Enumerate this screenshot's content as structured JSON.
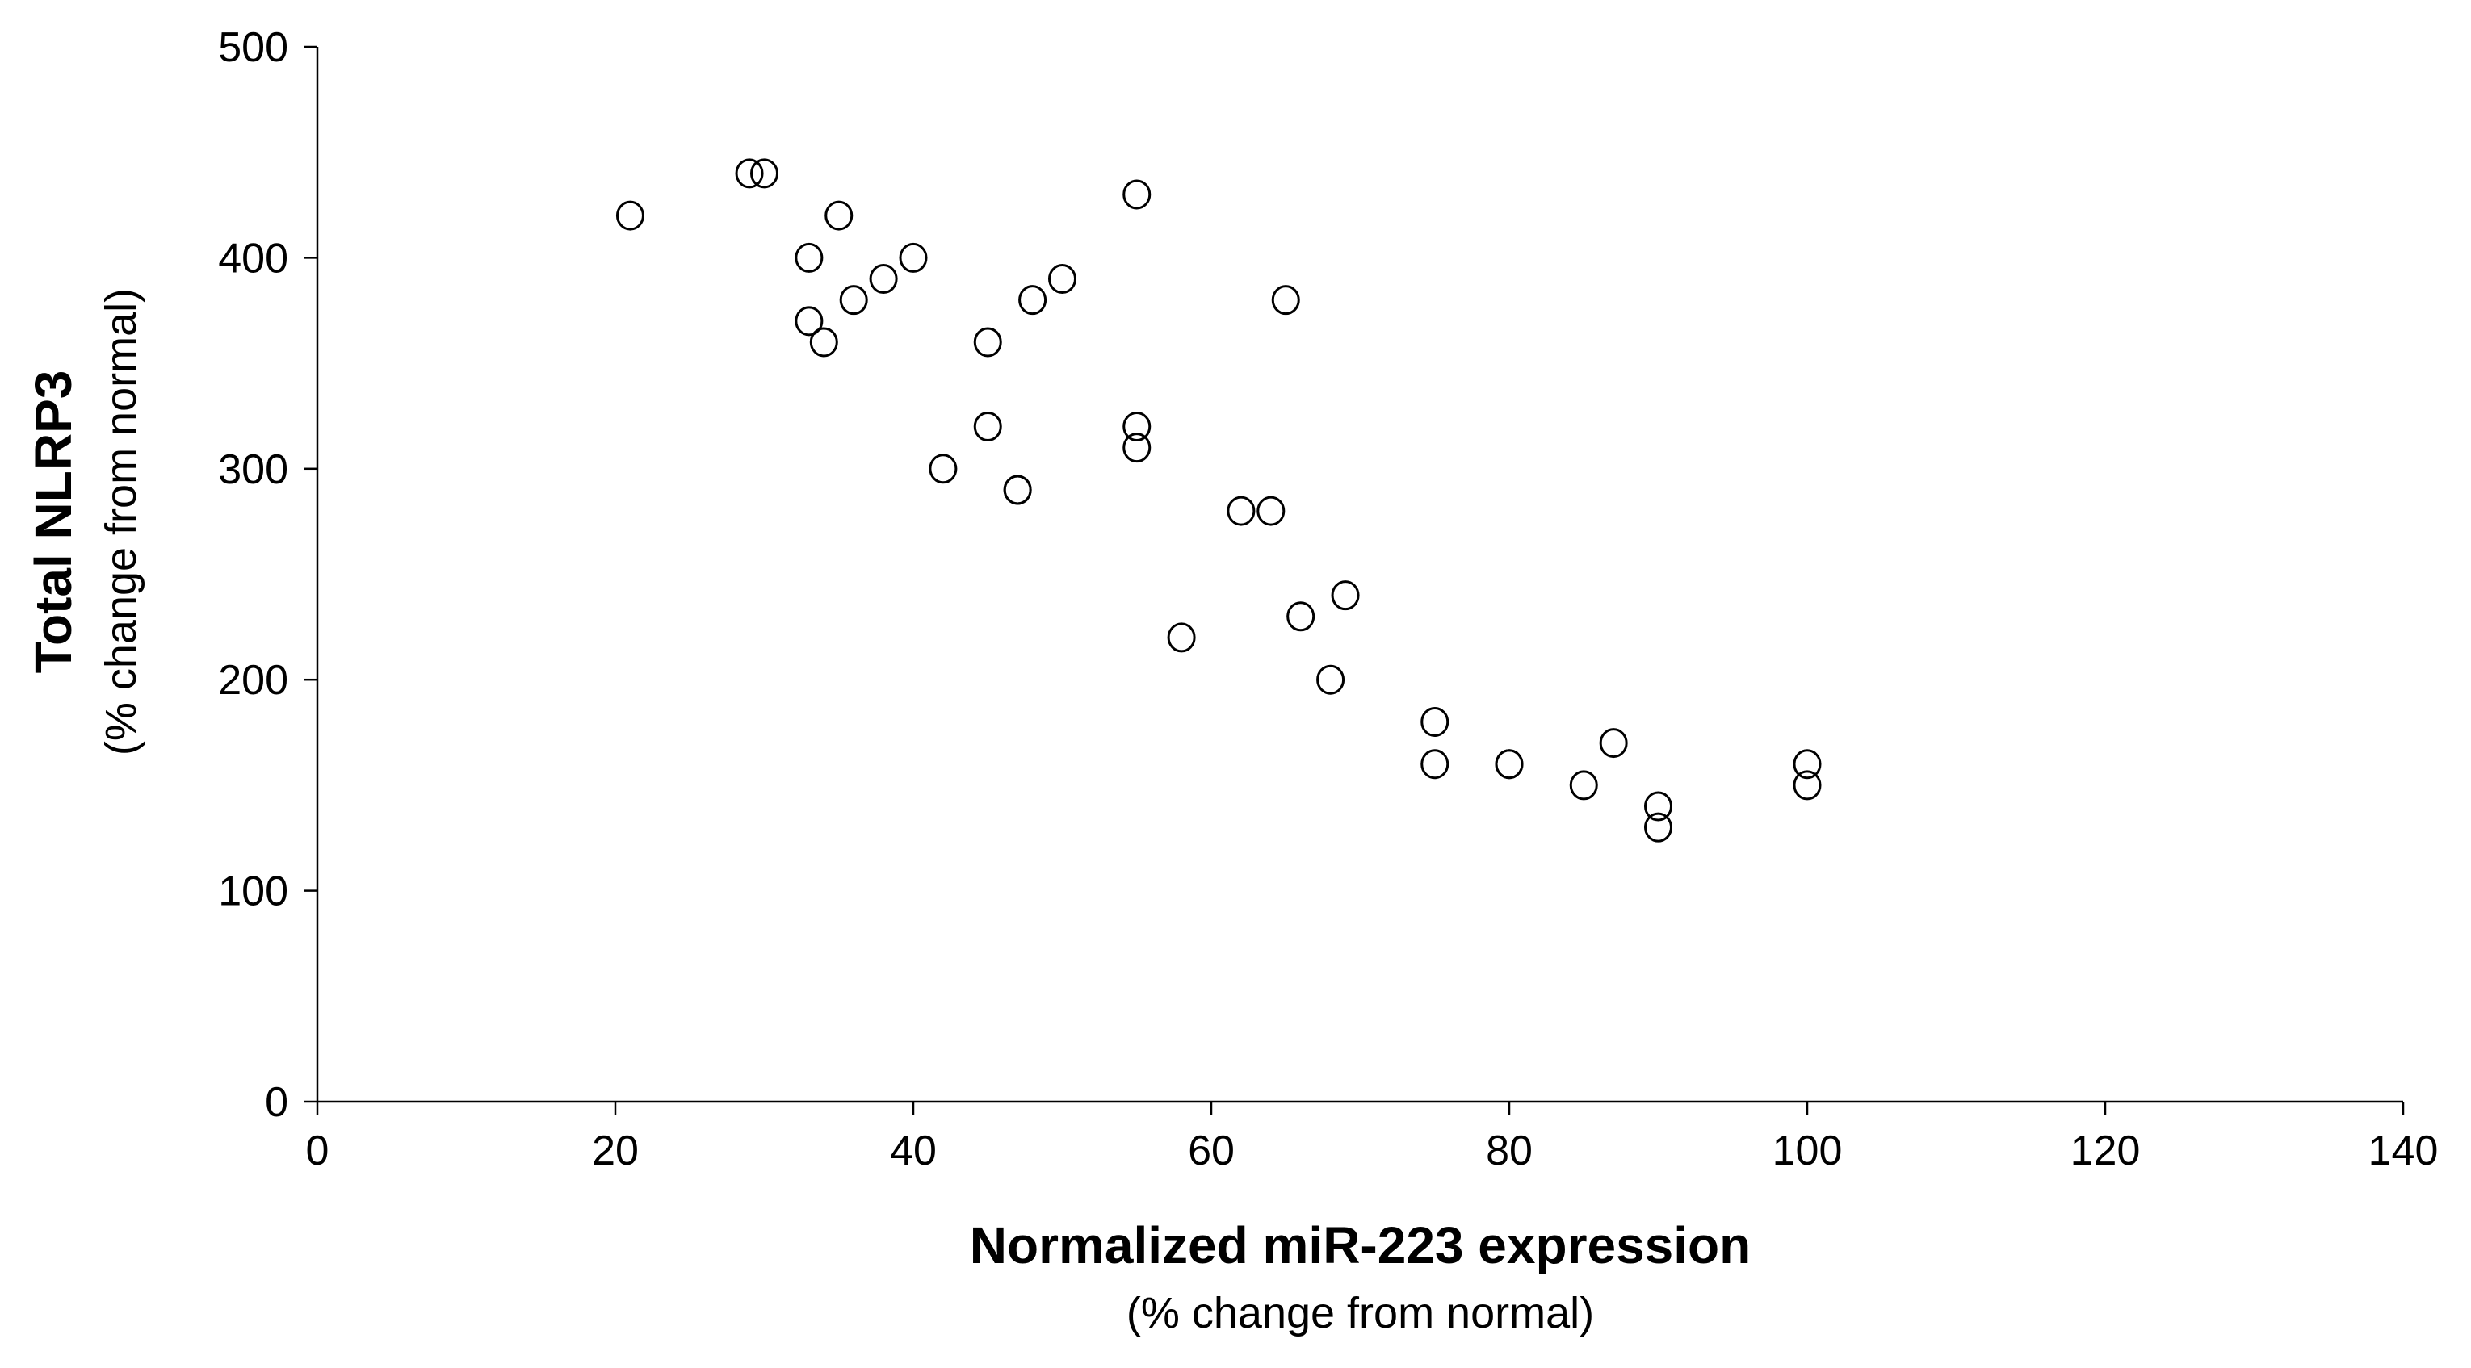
{
  "chart_data": {
    "type": "scatter",
    "title": "",
    "xlabel": "Normalized miR-223 expression",
    "xlabel_sub": "(% change from normal)",
    "ylabel": "Total NLRP3",
    "ylabel_sub": "(% change from normal)",
    "xlim": [
      0,
      140
    ],
    "ylim": [
      0,
      500
    ],
    "x_ticks": [
      "0",
      "20",
      "40",
      "60",
      "80",
      "100",
      "120",
      "140"
    ],
    "y_ticks": [
      "0",
      "100",
      "200",
      "300",
      "400",
      "500"
    ],
    "grid": false,
    "legend": "none",
    "marker": "open-circle",
    "marker_color": "#000000",
    "points": [
      {
        "x": 21,
        "y": 420
      },
      {
        "x": 29,
        "y": 440
      },
      {
        "x": 30,
        "y": 440
      },
      {
        "x": 33,
        "y": 400
      },
      {
        "x": 33,
        "y": 370
      },
      {
        "x": 34,
        "y": 360
      },
      {
        "x": 35,
        "y": 420
      },
      {
        "x": 36,
        "y": 380
      },
      {
        "x": 38,
        "y": 390
      },
      {
        "x": 40,
        "y": 400
      },
      {
        "x": 42,
        "y": 300
      },
      {
        "x": 45,
        "y": 360
      },
      {
        "x": 45,
        "y": 320
      },
      {
        "x": 47,
        "y": 290
      },
      {
        "x": 47,
        "y": 290
      },
      {
        "x": 48,
        "y": 380
      },
      {
        "x": 50,
        "y": 390
      },
      {
        "x": 55,
        "y": 430
      },
      {
        "x": 55,
        "y": 320
      },
      {
        "x": 55,
        "y": 310
      },
      {
        "x": 58,
        "y": 220
      },
      {
        "x": 62,
        "y": 280
      },
      {
        "x": 64,
        "y": 280
      },
      {
        "x": 65,
        "y": 380
      },
      {
        "x": 66,
        "y": 230
      },
      {
        "x": 68,
        "y": 200
      },
      {
        "x": 69,
        "y": 240
      },
      {
        "x": 75,
        "y": 180
      },
      {
        "x": 75,
        "y": 160
      },
      {
        "x": 80,
        "y": 160
      },
      {
        "x": 80,
        "y": 160
      },
      {
        "x": 85,
        "y": 150
      },
      {
        "x": 87,
        "y": 170
      },
      {
        "x": 90,
        "y": 140
      },
      {
        "x": 90,
        "y": 130
      },
      {
        "x": 100,
        "y": 160
      },
      {
        "x": 100,
        "y": 150
      }
    ]
  }
}
